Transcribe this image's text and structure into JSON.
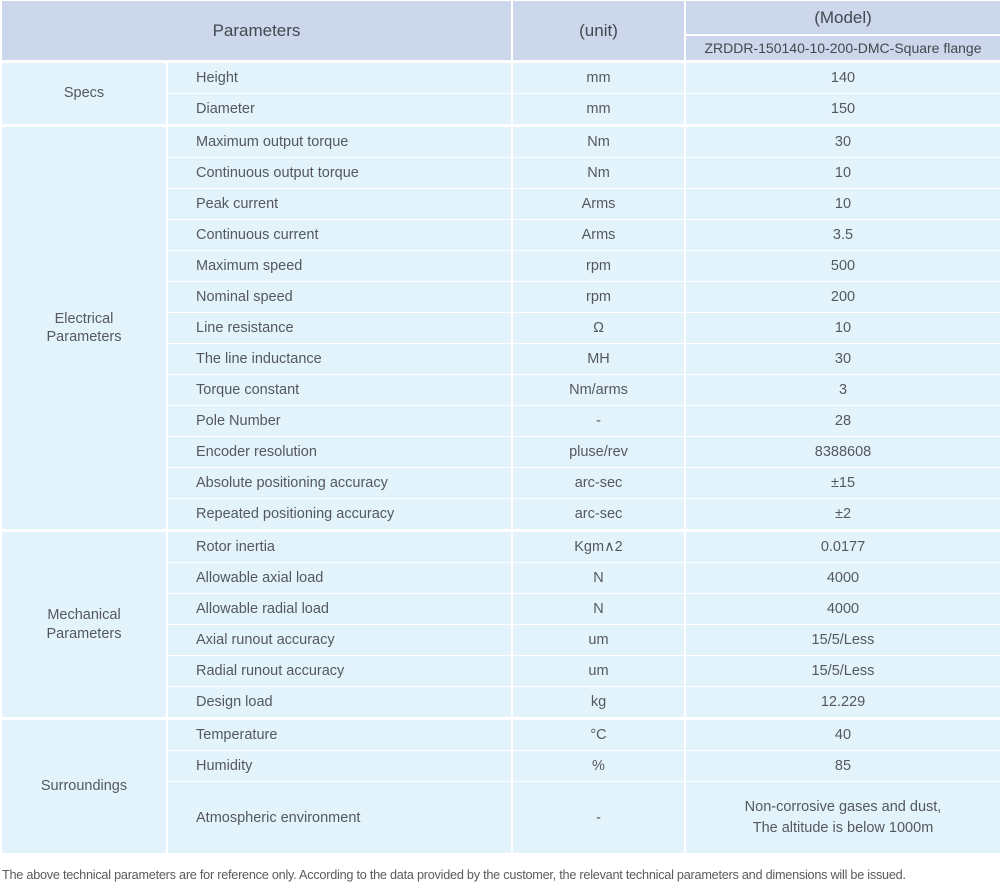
{
  "table": {
    "header": {
      "parameters": "Parameters",
      "unit": "(unit)",
      "model": "(Model)",
      "model_name": "ZRDDR-150140-10-200-DMC-Square flange"
    },
    "sections": [
      {
        "label": "Specs",
        "rows": [
          {
            "name": "Height",
            "unit": "mm",
            "value": "140"
          },
          {
            "name": "Diameter",
            "unit": "mm",
            "value": "150"
          }
        ]
      },
      {
        "label": "Electrical\nParameters",
        "rows": [
          {
            "name": "Maximum output torque",
            "unit": "Nm",
            "value": "30"
          },
          {
            "name": "Continuous output torque",
            "unit": "Nm",
            "value": "10"
          },
          {
            "name": "Peak current",
            "unit": "Arms",
            "value": "10"
          },
          {
            "name": "Continuous current",
            "unit": "Arms",
            "value": "3.5"
          },
          {
            "name": "Maximum speed",
            "unit": "rpm",
            "value": "500"
          },
          {
            "name": "Nominal speed",
            "unit": "rpm",
            "value": "200"
          },
          {
            "name": "Line resistance",
            "unit": "Ω",
            "value": "10"
          },
          {
            "name": "The line inductance",
            "unit": "MH",
            "value": "30"
          },
          {
            "name": "Torque constant",
            "unit": "Nm/arms",
            "value": "3"
          },
          {
            "name": "Pole Number",
            "unit": "-",
            "value": "28"
          },
          {
            "name": "Encoder resolution",
            "unit": "pluse/rev",
            "value": "8388608"
          },
          {
            "name": "Absolute positioning accuracy",
            "unit": "arc-sec",
            "value": "±15"
          },
          {
            "name": "Repeated positioning accuracy",
            "unit": "arc-sec",
            "value": "±2"
          }
        ]
      },
      {
        "label": "Mechanical\nParameters",
        "rows": [
          {
            "name": "Rotor inertia",
            "unit": "Kgm∧2",
            "value": "0.0177"
          },
          {
            "name": "Allowable axial load",
            "unit": "N",
            "value": "4000"
          },
          {
            "name": "Allowable radial load",
            "unit": "N",
            "value": "4000"
          },
          {
            "name": "Axial runout accuracy",
            "unit": "um",
            "value": "15/5/Less"
          },
          {
            "name": "Radial runout accuracy",
            "unit": "um",
            "value": "15/5/Less"
          },
          {
            "name": "Design load",
            "unit": "kg",
            "value": "12.229"
          }
        ]
      },
      {
        "label": "Surroundings",
        "rows": [
          {
            "name": "Temperature",
            "unit": "°C",
            "value": "40"
          },
          {
            "name": "Humidity",
            "unit": "%",
            "value": "85"
          },
          {
            "name": "Atmospheric environment",
            "unit": "-",
            "value": "Non-corrosive gases and dust,\nThe altitude is below 1000m",
            "tall": true
          }
        ]
      }
    ]
  },
  "note": "The above technical parameters are for reference only. According to the data provided by the customer, the relevant technical parameters and dimensions will be issued.",
  "colors": {
    "header_bg": "#ccd7ec",
    "cell_bg": "#e3f3fb",
    "separator": "#ffffff",
    "text": "#54585e"
  }
}
